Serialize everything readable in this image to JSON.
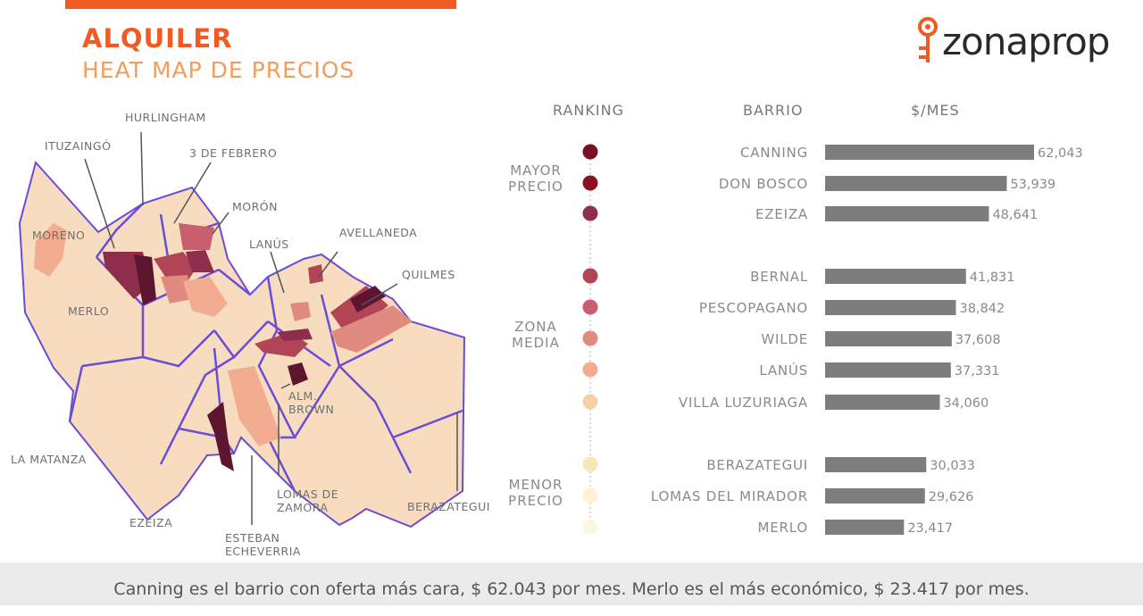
{
  "header": {
    "title": "ALQUILER",
    "subtitle": "HEAT MAP DE PRECIOS",
    "logo_text": "zonaprop"
  },
  "colors": {
    "accent": "#f15a22",
    "subtitle": "#f29d5c",
    "bar": "#7d7d7d",
    "border": "#6a4cd6",
    "map_base": "#f8dcc0",
    "rank_colors": [
      "#7a0f28",
      "#8c1020",
      "#8f2d4c",
      "#b14556",
      "#c85e6e",
      "#e08a80",
      "#f2ad90",
      "#f6d2a2",
      "#f9e6b8",
      "#fcf3d3",
      "#fdf7e2"
    ]
  },
  "map": {
    "labels": [
      "HURLINGHAM",
      "ITUZAINGÓ",
      "3 DE FEBRERO",
      "MORÓN",
      "MORENO",
      "LANÚS",
      "AVELLANEDA",
      "QUILMES",
      "MERLO",
      "ALM.",
      "BROWN",
      "LA MATANZA",
      "LOMAS DE",
      "ZAMORA",
      "EZEIZA",
      "ESTEBAN",
      "ECHEVERRIA",
      "BERAZATEGUI"
    ]
  },
  "chart_data": {
    "type": "bar",
    "column_headers": [
      "RANKING",
      "BARRIO",
      "$/MES"
    ],
    "group_labels": [
      [
        "MAYOR",
        "PRECIO"
      ],
      [
        "ZONA",
        "MEDIA"
      ],
      [
        "MENOR",
        "PRECIO"
      ]
    ],
    "categories": [
      "CANNING",
      "DON BOSCO",
      "EZEIZA",
      "BERNAL",
      "PESCOPAGANO",
      "WILDE",
      "LANÚS",
      "VILLA LUZURIAGA",
      "BERAZATEGUI",
      "LOMAS DEL MIRADOR",
      "MERLO"
    ],
    "values": [
      62043,
      53939,
      48641,
      41831,
      38842,
      37608,
      37331,
      34060,
      30033,
      29626,
      23417
    ],
    "value_labels": [
      "62,043",
      "53,939",
      "48,641",
      "41,831",
      "38,842",
      "37,608",
      "37,331",
      "34,060",
      "30,033",
      "29,626",
      "23,417"
    ],
    "groups": [
      0,
      0,
      0,
      1,
      1,
      1,
      1,
      1,
      2,
      2,
      2
    ],
    "xlim": [
      0,
      62043
    ]
  },
  "footer": {
    "text": "Canning es el barrio con oferta más cara, $ 62.043 por mes. Merlo es el más económico, $ 23.417 por mes."
  }
}
